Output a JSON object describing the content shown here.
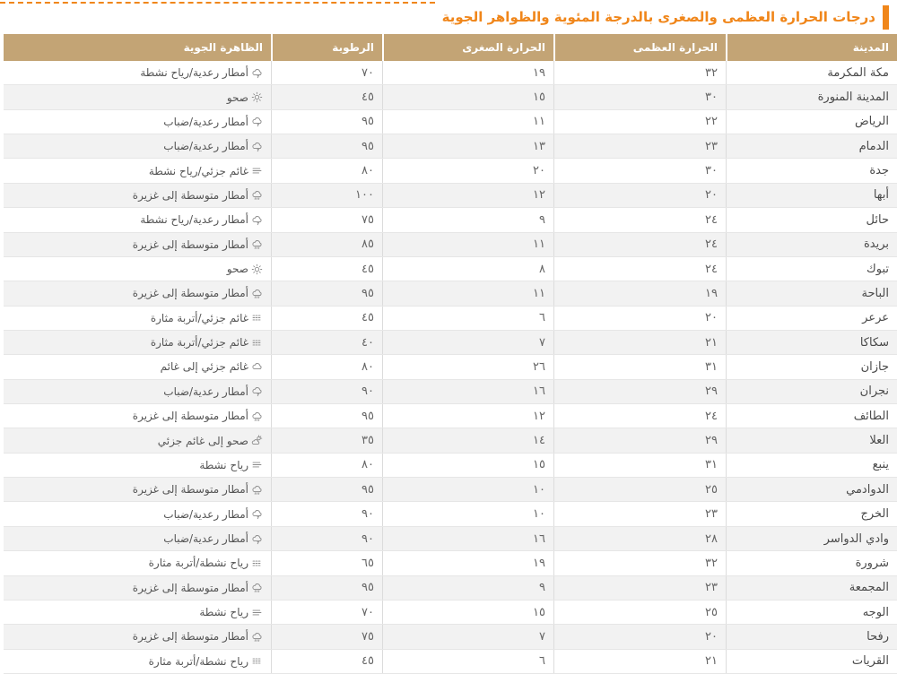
{
  "title": "درجات الحرارة العظمى والصغرى بالدرجة المئوية والظواهر الجوية",
  "colors": {
    "accent": "#F0861A",
    "header_bg": "#C3A475",
    "row_alt": "#F2F2F2",
    "icon": "#8A8A8A"
  },
  "table": {
    "headers": {
      "city": "المدينة",
      "max": "الحرارة العظمى",
      "min": "الحرارة الصغرى",
      "humidity": "الرطوبة",
      "phenomenon": "الظاهرة الجوية"
    },
    "rows": [
      {
        "city": "مكة المكرمة",
        "max": "٣٢",
        "min": "١٩",
        "humidity": "٧٠",
        "phenomenon": "أمطار رعدية/رياح نشطة",
        "icon": "storm"
      },
      {
        "city": "المدينة المنورة",
        "max": "٣٠",
        "min": "١٥",
        "humidity": "٤٥",
        "phenomenon": "صحو",
        "icon": "sun"
      },
      {
        "city": "الرياض",
        "max": "٢٢",
        "min": "١١",
        "humidity": "٩٥",
        "phenomenon": "أمطار رعدية/ضباب",
        "icon": "storm"
      },
      {
        "city": "الدمام",
        "max": "٢٣",
        "min": "١٣",
        "humidity": "٩٥",
        "phenomenon": "أمطار رعدية/ضباب",
        "icon": "storm"
      },
      {
        "city": "جدة",
        "max": "٣٠",
        "min": "٢٠",
        "humidity": "٨٠",
        "phenomenon": "غائم جزئي/رياح نشطة",
        "icon": "wind"
      },
      {
        "city": "أبها",
        "max": "٢٠",
        "min": "١٢",
        "humidity": "١٠٠",
        "phenomenon": "أمطار متوسطة إلى غزيرة",
        "icon": "rain"
      },
      {
        "city": "حائل",
        "max": "٢٤",
        "min": "٩",
        "humidity": "٧٥",
        "phenomenon": "أمطار رعدية/رياح نشطة",
        "icon": "storm"
      },
      {
        "city": "بريدة",
        "max": "٢٤",
        "min": "١١",
        "humidity": "٨٥",
        "phenomenon": "أمطار متوسطة إلى غزيرة",
        "icon": "rain"
      },
      {
        "city": "تبوك",
        "max": "٢٤",
        "min": "٨",
        "humidity": "٤٥",
        "phenomenon": "صحو",
        "icon": "sun"
      },
      {
        "city": "الباحة",
        "max": "١٩",
        "min": "١١",
        "humidity": "٩٥",
        "phenomenon": "أمطار متوسطة إلى غزيرة",
        "icon": "rain"
      },
      {
        "city": "عرعر",
        "max": "٢٠",
        "min": "٦",
        "humidity": "٤٥",
        "phenomenon": "غائم جزئي/أتربة مثارة",
        "icon": "dust"
      },
      {
        "city": "سكاكا",
        "max": "٢١",
        "min": "٧",
        "humidity": "٤٠",
        "phenomenon": "غائم جزئي/أتربة مثارة",
        "icon": "dust"
      },
      {
        "city": "جازان",
        "max": "٣١",
        "min": "٢٦",
        "humidity": "٨٠",
        "phenomenon": "غائم جزئي إلى غائم",
        "icon": "cloud"
      },
      {
        "city": "نجران",
        "max": "٢٩",
        "min": "١٦",
        "humidity": "٩٠",
        "phenomenon": "أمطار رعدية/ضباب",
        "icon": "storm"
      },
      {
        "city": "الطائف",
        "max": "٢٤",
        "min": "١٢",
        "humidity": "٩٥",
        "phenomenon": "أمطار متوسطة إلى غزيرة",
        "icon": "rain"
      },
      {
        "city": "العلا",
        "max": "٢٩",
        "min": "١٤",
        "humidity": "٣٥",
        "phenomenon": "صحو إلى غائم جزئي",
        "icon": "sun-cloud"
      },
      {
        "city": "ينبع",
        "max": "٣١",
        "min": "١٥",
        "humidity": "٨٠",
        "phenomenon": "رياح نشطة",
        "icon": "wind"
      },
      {
        "city": "الدوادمي",
        "max": "٢٥",
        "min": "١٠",
        "humidity": "٩٥",
        "phenomenon": "أمطار متوسطة إلى غزيرة",
        "icon": "rain"
      },
      {
        "city": "الخرج",
        "max": "٢٣",
        "min": "١٠",
        "humidity": "٩٠",
        "phenomenon": "أمطار رعدية/ضباب",
        "icon": "storm"
      },
      {
        "city": "وادي الدواسر",
        "max": "٢٨",
        "min": "١٦",
        "humidity": "٩٠",
        "phenomenon": "أمطار رعدية/ضباب",
        "icon": "storm"
      },
      {
        "city": "شرورة",
        "max": "٣٢",
        "min": "١٩",
        "humidity": "٦٥",
        "phenomenon": "رياح نشطة/أتربة مثارة",
        "icon": "dust"
      },
      {
        "city": "المجمعة",
        "max": "٢٣",
        "min": "٩",
        "humidity": "٩٥",
        "phenomenon": "أمطار متوسطة إلى غزيرة",
        "icon": "rain"
      },
      {
        "city": "الوجه",
        "max": "٢٥",
        "min": "١٥",
        "humidity": "٧٠",
        "phenomenon": "رياح نشطة",
        "icon": "wind"
      },
      {
        "city": "رفحا",
        "max": "٢٠",
        "min": "٧",
        "humidity": "٧٥",
        "phenomenon": "أمطار متوسطة إلى غزيرة",
        "icon": "rain"
      },
      {
        "city": "القريات",
        "max": "٢١",
        "min": "٦",
        "humidity": "٤٥",
        "phenomenon": "رياح نشطة/أتربة مثارة",
        "icon": "dust"
      }
    ]
  }
}
